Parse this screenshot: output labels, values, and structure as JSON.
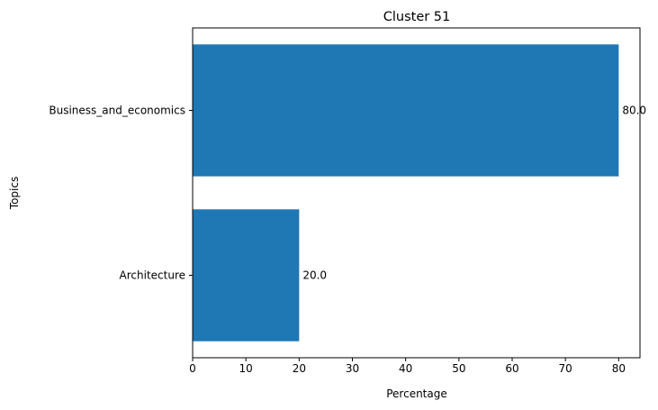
{
  "chart_data": {
    "type": "bar",
    "orientation": "horizontal",
    "title": "Cluster 51",
    "xlabel": "Percentage",
    "ylabel": "Topics",
    "categories": [
      "Business_and_economics",
      "Architecture"
    ],
    "values": [
      80.0,
      20.0
    ],
    "data_labels": [
      "80.0",
      "20.0"
    ],
    "xlim": [
      0,
      84
    ],
    "xticks": [
      0,
      10,
      20,
      30,
      40,
      50,
      60,
      70,
      80
    ],
    "grid": false,
    "legend": "none",
    "bar_color": "#1f77b4"
  }
}
